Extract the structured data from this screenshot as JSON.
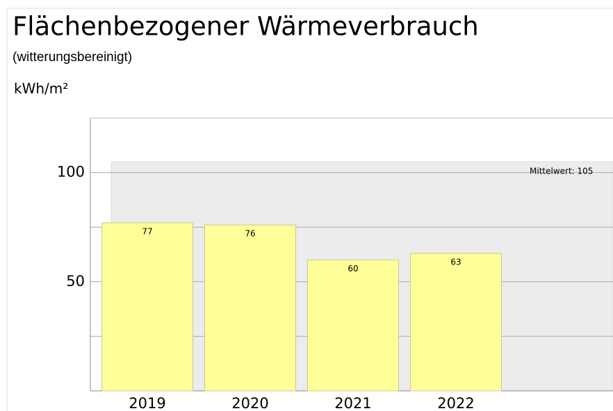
{
  "chart_data": {
    "type": "bar",
    "title": "Flächenbezogener Wärmeverbrauch",
    "subtitle": "(witterungsbereinigt)",
    "y_label": "kWh/m²",
    "categories": [
      "2019",
      "2020",
      "2021",
      "2022"
    ],
    "values": [
      77,
      76,
      60,
      63
    ],
    "color": "#ffff99",
    "ylim": [
      0,
      125
    ],
    "yticks": [
      50,
      100
    ],
    "minor_yticks": [
      25,
      75
    ],
    "grid": true,
    "mean": {
      "value": 105,
      "label": "Mittelwert: 105"
    }
  }
}
